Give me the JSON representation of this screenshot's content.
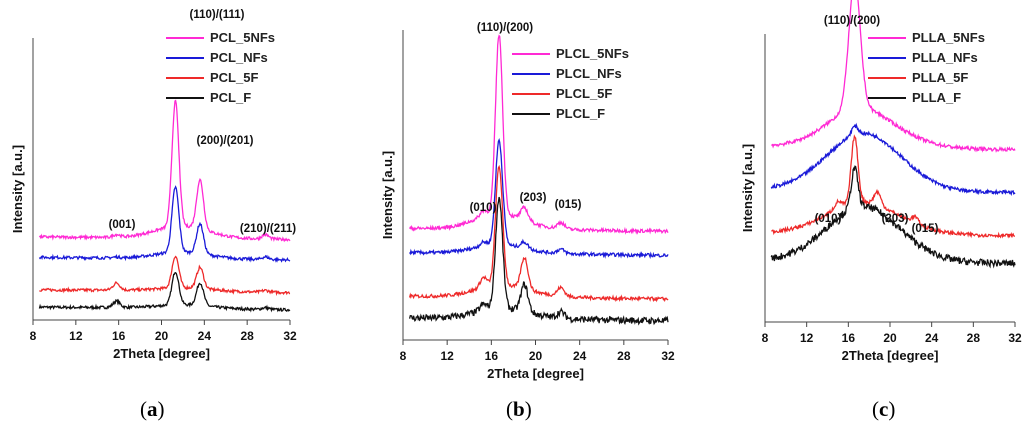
{
  "colors": {
    "magenta": "#ff2ad4",
    "blue": "#1a1ad8",
    "red": "#ee2a2a",
    "black": "#111111"
  },
  "captions": {
    "a": "a",
    "b": "b",
    "c": "c"
  },
  "chart_data": [
    {
      "id": "a",
      "type": "line",
      "xlabel": "2Theta [degree]",
      "ylabel": "Intensity [a.u.]",
      "xlim": [
        8,
        32
      ],
      "xticks": [
        "8",
        "12",
        "16",
        "20",
        "24",
        "28",
        "32"
      ],
      "y_scale": "arbitrary units, vertically offset",
      "grid": false,
      "legend_position": "top-right",
      "peaks": [
        {
          "label": "(001)",
          "x": 15.8
        },
        {
          "label": "(110)/(111)",
          "x": 21.3
        },
        {
          "label": "(200)/(201)",
          "x": 23.6
        },
        {
          "label": "(210)/(211)",
          "x": 29.7
        }
      ],
      "series": [
        {
          "name": "PCL_5NFs",
          "color": "magenta",
          "baseline": 10,
          "peaks": [
            [
              15.8,
              1.5
            ],
            [
              21.3,
              71
            ],
            [
              23.6,
              28
            ],
            [
              29.7,
              2.5
            ]
          ]
        },
        {
          "name": "PCL_NFs",
          "color": "blue",
          "baseline": -10,
          "peaks": [
            [
              15.8,
              0.5
            ],
            [
              21.3,
              37
            ],
            [
              23.6,
              17
            ],
            [
              29.7,
              1.5
            ]
          ]
        },
        {
          "name": "PCL_5F",
          "color": "red",
          "baseline": -42,
          "peaks": [
            [
              15.8,
              4
            ],
            [
              21.3,
              18
            ],
            [
              23.6,
              12
            ],
            [
              29.7,
              1
            ]
          ]
        },
        {
          "name": "PCL_F",
          "color": "black",
          "baseline": -59,
          "peaks": [
            [
              15.8,
              3.5
            ],
            [
              21.3,
              19
            ],
            [
              23.6,
              13
            ],
            [
              29.7,
              1
            ]
          ]
        }
      ]
    },
    {
      "id": "b",
      "type": "line",
      "xlabel": "2Theta [degree]",
      "ylabel": "Intensity [a.u.]",
      "xlim": [
        8,
        32
      ],
      "xticks": [
        "8",
        "12",
        "16",
        "20",
        "24",
        "28",
        "32"
      ],
      "y_scale": "arbitrary units, vertically offset",
      "grid": false,
      "legend_position": "top-right",
      "peaks": [
        {
          "label": "(010)",
          "x": 15.3
        },
        {
          "label": "(110)/(200)",
          "x": 16.7
        },
        {
          "label": "(203)",
          "x": 19.0
        },
        {
          "label": "(015)",
          "x": 22.3
        }
      ],
      "series": [
        {
          "name": "PLCL_5NFs",
          "color": "magenta",
          "baseline": 8,
          "peaks": [
            [
              15.3,
              3
            ],
            [
              16.7,
              86
            ],
            [
              19.0,
              6
            ],
            [
              22.3,
              3
            ]
          ]
        },
        {
          "name": "PLCL_NFs",
          "color": "blue",
          "baseline": -12,
          "peaks": [
            [
              15.3,
              2
            ],
            [
              16.7,
              50
            ],
            [
              19.0,
              3
            ],
            [
              22.3,
              2
            ]
          ]
        },
        {
          "name": "PLCL_5F",
          "color": "red",
          "baseline": -48,
          "peaks": [
            [
              15.3,
              5
            ],
            [
              16.7,
              57
            ],
            [
              19.0,
              15
            ],
            [
              22.3,
              4
            ]
          ]
        },
        {
          "name": "PLCL_F",
          "color": "black",
          "baseline": -66,
          "peaks": [
            [
              15.3,
              3
            ],
            [
              16.7,
              53
            ],
            [
              19.0,
              13
            ],
            [
              22.3,
              3
            ]
          ]
        }
      ]
    },
    {
      "id": "c",
      "type": "line",
      "xlabel": "2Theta [degree]",
      "ylabel": "Intensity [a.u.]",
      "xlim": [
        8,
        32
      ],
      "xticks": [
        "8",
        "12",
        "16",
        "20",
        "24",
        "28",
        "32"
      ],
      "y_scale": "arbitrary units, vertically offset",
      "grid": false,
      "legend_position": "top-right",
      "peaks": [
        {
          "label": "(110)/(200)",
          "x": 16.6
        },
        {
          "label": "(010)",
          "x": 14.9
        },
        {
          "label": "(203)",
          "x": 18.8
        },
        {
          "label": "(015)",
          "x": 22.4
        }
      ],
      "series": [
        {
          "name": "PLLA_5NFs",
          "color": "magenta",
          "baseline": 20,
          "peaks": [
            [
              16.6,
              58
            ]
          ],
          "halo": 14
        },
        {
          "name": "PLLA_NFs",
          "color": "blue",
          "baseline": -14,
          "peaks": [
            [
              16.6,
              4
            ]
          ],
          "halo": 26
        },
        {
          "name": "PLLA_5F",
          "color": "red",
          "baseline": -48,
          "peaks": [
            [
              15.0,
              3
            ],
            [
              16.6,
              30
            ],
            [
              18.8,
              6
            ],
            [
              22.4,
              3
            ]
          ],
          "halo": 12
        },
        {
          "name": "PLLA_F",
          "color": "black",
          "baseline": -70,
          "peaks": [
            [
              16.6,
              18
            ]
          ],
          "halo": 24
        }
      ]
    }
  ]
}
